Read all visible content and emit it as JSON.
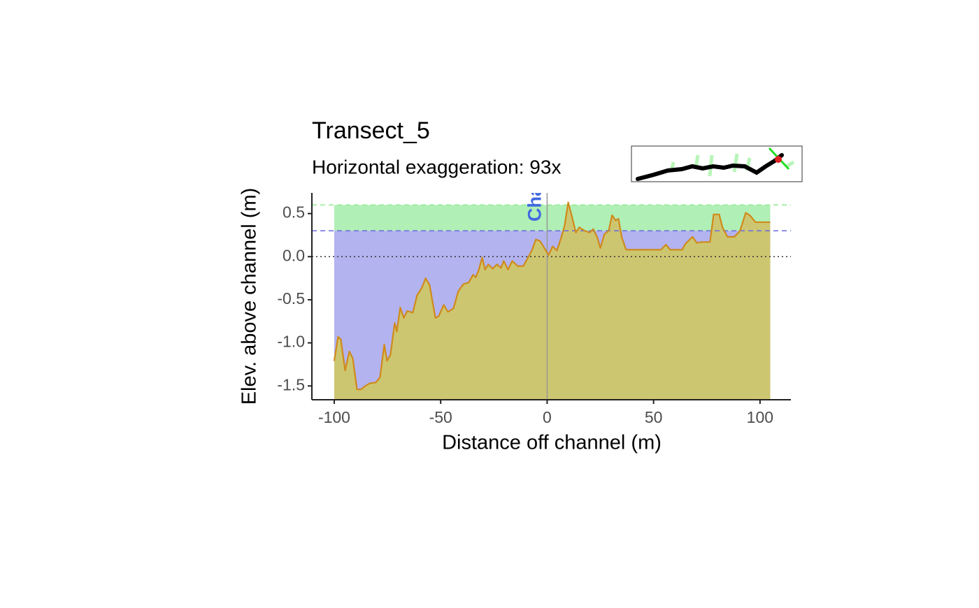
{
  "chart_data": {
    "type": "line",
    "title": "Transect_5",
    "subtitle": "Horizontal exaggeration: 93x",
    "x_label": "Distance off channel (m)",
    "y_label": "Elev. above channel (m)",
    "channel_label": "Channel",
    "x": [
      -100,
      -98.2,
      -96.9,
      -94.9,
      -92.9,
      -91.3,
      -89.3,
      -87.4,
      -86.0,
      -83.4,
      -80.5,
      -78.5,
      -76.5,
      -75.2,
      -73.6,
      -71.6,
      -70.6,
      -69.0,
      -67.3,
      -65.7,
      -63.1,
      -61.1,
      -58.8,
      -57.1,
      -55.2,
      -52.5,
      -50.9,
      -48.6,
      -46.6,
      -44.0,
      -41.7,
      -39.4,
      -36.8,
      -34.8,
      -33.5,
      -32.2,
      -30.5,
      -29.2,
      -27.6,
      -25.6,
      -23.6,
      -21.7,
      -20.4,
      -18.4,
      -16.4,
      -13.8,
      -11.2,
      -9.2,
      -7.2,
      -5.3,
      -3.3,
      -1.3,
      0.7,
      2.6,
      4.6,
      6.6,
      8.2,
      9.9,
      11.8,
      13.5,
      15.1,
      17.7,
      20.0,
      21.7,
      23.6,
      25.0,
      26.9,
      28.9,
      30.5,
      32.2,
      33.5,
      35.1,
      37.1,
      40.4,
      47.0,
      53.5,
      55.8,
      57.8,
      63.4,
      65.0,
      68.3,
      70.3,
      72.6,
      76.5,
      78.2,
      80.8,
      82.4,
      84.7,
      88.0,
      90.6,
      93.3,
      95.2,
      97.9,
      104.8
    ],
    "values": [
      -1.21,
      -0.93,
      -0.96,
      -1.32,
      -1.1,
      -1.18,
      -1.54,
      -1.54,
      -1.51,
      -1.47,
      -1.46,
      -1.4,
      -1.02,
      -1.21,
      -1.14,
      -0.77,
      -0.87,
      -0.59,
      -0.71,
      -0.63,
      -0.65,
      -0.45,
      -0.36,
      -0.25,
      -0.33,
      -0.71,
      -0.69,
      -0.56,
      -0.64,
      -0.6,
      -0.4,
      -0.32,
      -0.3,
      -0.21,
      -0.24,
      -0.16,
      -0.01,
      -0.15,
      -0.09,
      -0.14,
      -0.09,
      -0.13,
      -0.05,
      -0.15,
      -0.05,
      -0.11,
      -0.11,
      -0.02,
      0.07,
      0.2,
      0.18,
      0.1,
      0.02,
      0.12,
      0.07,
      0.22,
      0.36,
      0.63,
      0.45,
      0.28,
      0.34,
      0.3,
      0.28,
      0.32,
      0.22,
      0.1,
      0.26,
      0.3,
      0.48,
      0.42,
      0.44,
      0.22,
      0.08,
      0.08,
      0.08,
      0.08,
      0.14,
      0.08,
      0.08,
      0.15,
      0.23,
      0.16,
      0.17,
      0.17,
      0.49,
      0.49,
      0.34,
      0.23,
      0.23,
      0.3,
      0.51,
      0.48,
      0.4,
      0.4
    ],
    "color": "#d08a1a",
    "ground_fill": "#cdc670",
    "reference_lines": [
      {
        "value": 0.6,
        "color": "#90ee90",
        "fill": "#b0efb5",
        "style": "dashed"
      },
      {
        "value": 0.3,
        "color": "#6a6ae0",
        "fill": "#b3b3ef",
        "style": "dashed"
      },
      {
        "value": 0,
        "color": "#333333",
        "style": "dotted"
      }
    ],
    "channel_x": 0,
    "channel_color": "#4169e1",
    "xlim": [
      -110.5,
      114.5
    ],
    "ylim": [
      -1.66,
      0.74
    ],
    "xticks": [
      -100,
      -50,
      0,
      50,
      100
    ],
    "yticks": [
      0.5,
      {
        "value": 0,
        "label": "0.0"
      },
      -0.5,
      {
        "value": -1,
        "label": "-1.0"
      },
      -1.5
    ]
  }
}
